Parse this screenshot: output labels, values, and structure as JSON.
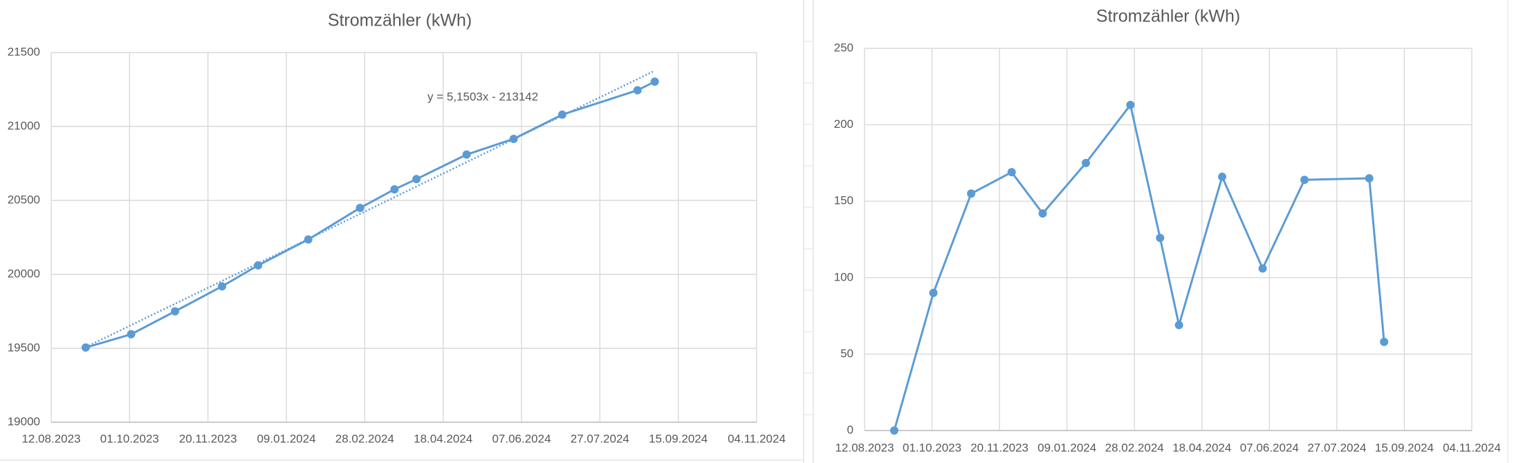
{
  "chart_data": [
    {
      "type": "line",
      "title": "Stromzähler (kWh)",
      "x": [
        "03.09.2023",
        "02.10.2023",
        "30.10.2023",
        "29.11.2023",
        "22.12.2023",
        "23.01.2024",
        "25.02.2024",
        "18.03.2024",
        "01.04.2024",
        "03.05.2024",
        "02.06.2024",
        "03.07.2024",
        "20.08.2024",
        "31.08.2024"
      ],
      "values": [
        19505,
        19595,
        19750,
        19919,
        20061,
        20236,
        20449,
        20575,
        20644,
        20810,
        20916,
        21080,
        21245,
        21303
      ],
      "color": "#5b9bd5",
      "xlim": [
        "12.08.2023",
        "04.11.2024"
      ],
      "xticks": [
        "12.08.2023",
        "01.10.2023",
        "20.11.2023",
        "09.01.2024",
        "28.02.2024",
        "18.04.2024",
        "07.06.2024",
        "27.07.2024",
        "15.09.2024",
        "04.11.2024"
      ],
      "ylim": [
        19000,
        21500
      ],
      "yticks": [
        19000,
        19500,
        20000,
        20500,
        21000,
        21500
      ],
      "grid": true,
      "trendline": {
        "slope": 5.1503,
        "intercept": -213142,
        "label": "y = 5,1503x - 213142"
      }
    },
    {
      "type": "line",
      "title": "Stromzähler (kWh)",
      "x": [
        "03.09.2023",
        "02.10.2023",
        "30.10.2023",
        "29.11.2023",
        "22.12.2023",
        "23.01.2024",
        "25.02.2024",
        "18.03.2024",
        "01.04.2024",
        "03.05.2024",
        "02.06.2024",
        "03.07.2024",
        "20.08.2024",
        "31.08.2024"
      ],
      "values": [
        0,
        90,
        155,
        169,
        142,
        175,
        213,
        126,
        69,
        166,
        106,
        164,
        165,
        58
      ],
      "color": "#5b9bd5",
      "xlim": [
        "12.08.2023",
        "04.11.2024"
      ],
      "xticks": [
        "12.08.2023",
        "01.10.2023",
        "20.11.2023",
        "09.01.2024",
        "28.02.2024",
        "18.04.2024",
        "07.06.2024",
        "27.07.2024",
        "15.09.2024",
        "04.11.2024"
      ],
      "ylim": [
        0,
        250
      ],
      "yticks": [
        0,
        50,
        100,
        150,
        200,
        250
      ],
      "grid": true
    }
  ]
}
